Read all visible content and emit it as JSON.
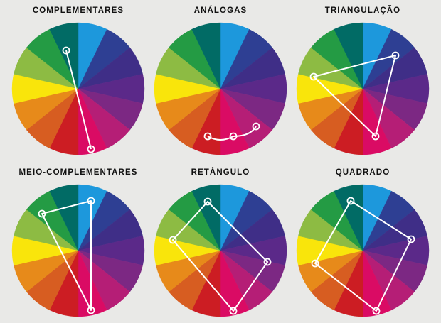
{
  "wheel_colors": [
    "#1d98dc",
    "#2e3f93",
    "#3f2e87",
    "#5b2989",
    "#7c2883",
    "#b51e76",
    "#da0b64",
    "#cc1d23",
    "#d75d21",
    "#e78a1a",
    "#f9e50b",
    "#8dbb43",
    "#249b44",
    "#016b65"
  ],
  "marker": {
    "fill": "#ffffff",
    "stroke": "#ffffff"
  },
  "panels": [
    {
      "title": "COMPLEMENTARES",
      "points": [
        [
          -17,
          -54
        ],
        [
          18,
          85
        ]
      ],
      "path": "polyline"
    },
    {
      "title": "ANÁLOGAS",
      "points": [
        [
          -18,
          67
        ],
        [
          18,
          67
        ],
        [
          50,
          53
        ]
      ],
      "path": "curve"
    },
    {
      "title": "TRIANGULAÇÃO",
      "points": [
        [
          -69,
          -17
        ],
        [
          46,
          -47
        ],
        [
          18,
          67
        ]
      ],
      "path": "closed"
    },
    {
      "title": "MEIO-COMPLEMENTARES",
      "points": [
        [
          -51,
          -52
        ],
        [
          18,
          -70
        ],
        [
          18,
          84
        ]
      ],
      "path": "closed"
    },
    {
      "title": "RETÂNGULO",
      "points": [
        [
          -18,
          -69
        ],
        [
          -67,
          -15
        ],
        [
          18,
          85
        ],
        [
          66,
          16
        ]
      ],
      "path": "closed"
    },
    {
      "title": "QUADRADO",
      "points": [
        [
          -17,
          -70
        ],
        [
          68,
          -16
        ],
        [
          19,
          85
        ],
        [
          -67,
          18
        ]
      ],
      "path": "closed"
    }
  ]
}
